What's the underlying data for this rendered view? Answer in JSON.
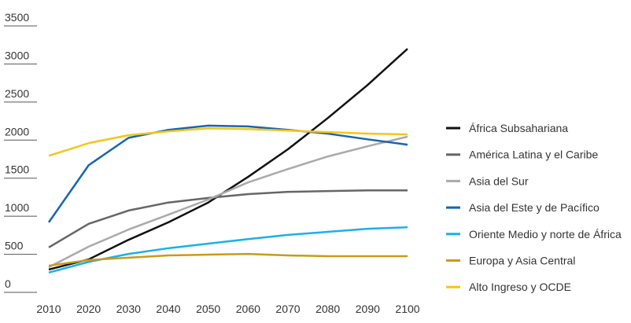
{
  "chart_data": {
    "type": "line",
    "x": [
      2010,
      2020,
      2030,
      2040,
      2050,
      2060,
      2070,
      2080,
      2090,
      2100
    ],
    "xlim": [
      2010,
      2100
    ],
    "xticks": [
      2010,
      2020,
      2030,
      2040,
      2050,
      2060,
      2070,
      2080,
      2090,
      2100
    ],
    "ylim": [
      0,
      3500
    ],
    "yticks": [
      0,
      500,
      1000,
      1500,
      2000,
      2500,
      3000,
      3500
    ],
    "legend": "right",
    "series": [
      {
        "name": "África Subsahariana",
        "color": "#111111",
        "values": [
          300,
          433,
          690,
          920,
          1180,
          1517,
          1880,
          2290,
          2725,
          3200
        ]
      },
      {
        "name": "América Latina y el Caribe",
        "color": "#666666",
        "values": [
          590,
          900,
          1075,
          1180,
          1240,
          1290,
          1320,
          1330,
          1340,
          1340
        ]
      },
      {
        "name": "Asia del Sur",
        "color": "#aaaaaa",
        "values": [
          330,
          600,
          825,
          1020,
          1220,
          1445,
          1620,
          1785,
          1920,
          2045
        ]
      },
      {
        "name": "Asia del Este y de Pacífico",
        "color": "#1565b0",
        "values": [
          920,
          1670,
          2030,
          2135,
          2190,
          2180,
          2135,
          2085,
          2010,
          1940
        ]
      },
      {
        "name": "Oriente Medio y norte de África",
        "color": "#1ab0e8",
        "values": [
          260,
          400,
          505,
          580,
          640,
          700,
          755,
          795,
          835,
          855
        ]
      },
      {
        "name": "Europa y Asia Central",
        "color": "#c99a1c",
        "values": [
          350,
          425,
          455,
          485,
          495,
          505,
          485,
          475,
          475,
          475
        ]
      },
      {
        "name": "Alto Ingreso y OCDE",
        "color": "#f5c518",
        "values": [
          1795,
          1960,
          2065,
          2115,
          2155,
          2145,
          2125,
          2105,
          2085,
          2075
        ]
      }
    ]
  }
}
